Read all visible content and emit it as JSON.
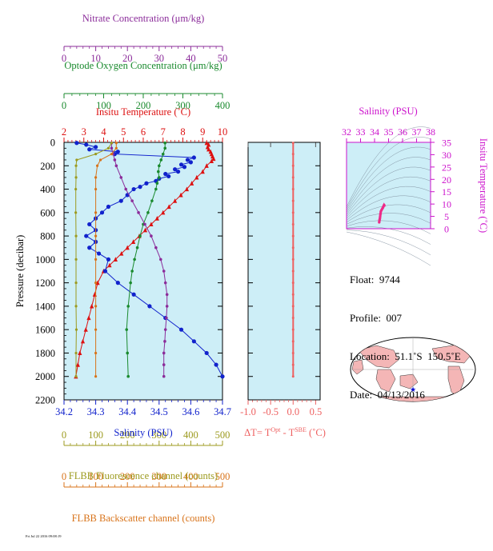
{
  "colors": {
    "nitrate": "#8b2c9a",
    "oxygen": "#1a8a2e",
    "temperature": "#dd1111",
    "salinity": "#1122cc",
    "fluorescence": "#9c9a1e",
    "backscatter": "#d8731a",
    "delta_t": "#ee6060",
    "ts_axis": "#cc11cc",
    "ts_curve": "#ee2a88",
    "panel_bg": "#cdeef7"
  },
  "axes": {
    "nitrate": {
      "label": "Nitrate Concentration (μm/kg)",
      "ticks": [
        "0",
        "10",
        "20",
        "30",
        "40",
        "50"
      ],
      "range": [
        0,
        50
      ]
    },
    "oxygen": {
      "label": "Optode Oxygen Concentration (μm/kg)",
      "ticks": [
        "0",
        "100",
        "200",
        "300",
        "400"
      ],
      "range": [
        0,
        400
      ]
    },
    "temperature": {
      "label": "Insitu Temperature (˚C)",
      "ticks": [
        "2",
        "3",
        "4",
        "5",
        "6",
        "7",
        "8",
        "9",
        "10"
      ],
      "range": [
        2,
        10
      ]
    },
    "pressure": {
      "label": "Pressure (decibar)",
      "ticks": [
        "0",
        "200",
        "400",
        "600",
        "800",
        "1000",
        "1200",
        "1400",
        "1600",
        "1800",
        "2000",
        "2200"
      ],
      "range": [
        0,
        2200
      ]
    },
    "salinity": {
      "label": "Salinity (PSU)",
      "ticks": [
        "34.2",
        "34.3",
        "34.4",
        "34.5",
        "34.6",
        "34.7"
      ],
      "range": [
        34.2,
        34.7
      ]
    },
    "fluorescence": {
      "label": "FLBB Fluorescence channel (counts)",
      "ticks": [
        "0",
        "100",
        "200",
        "300",
        "400",
        "500"
      ],
      "range": [
        0,
        500
      ]
    },
    "backscatter": {
      "label": "FLBB Backscatter channel (counts)",
      "ticks": [
        "0",
        "100",
        "200",
        "300",
        "400",
        "500"
      ],
      "range": [
        0,
        500
      ]
    },
    "delta_t": {
      "label": "ΔT= T",
      "label_sup1": "Opt",
      "label_mid": " - T",
      "label_sup2": "SBE",
      "label_end": " (˚C)",
      "ticks": [
        "-1.0",
        "-0.5",
        "0.0",
        "0.5"
      ],
      "range": [
        -1.0,
        0.6
      ]
    },
    "ts_salinity": {
      "label": "Salinity (PSU)",
      "ticks": [
        "32",
        "33",
        "34",
        "35",
        "36",
        "37",
        "38"
      ],
      "range": [
        32,
        38
      ]
    },
    "ts_temperature": {
      "label": "Insitu Temperature (˚C)",
      "ticks": [
        "0",
        "5",
        "10",
        "15",
        "20",
        "25",
        "30",
        "35"
      ],
      "range": [
        0,
        35
      ]
    }
  },
  "info": {
    "float": "Float:  9744",
    "profile": "Profile:  007",
    "location": "Location:  51.1˚S  150.5˚E",
    "date": "Date:  04/13/2016"
  },
  "footer_text": "Fri Jul 22 2016 09:08:19",
  "map": {
    "marker_lon": 150.5,
    "marker_lat": -51.1
  },
  "chart_data": {
    "type": "line",
    "y_axis": "pressure",
    "series": [
      {
        "key": "temperature",
        "pressure": [
          5,
          20,
          40,
          60,
          80,
          100,
          120,
          140,
          160,
          200,
          250,
          300,
          350,
          400,
          450,
          500,
          550,
          600,
          650,
          700,
          750,
          800,
          850,
          900,
          950,
          1000,
          1050,
          1100,
          1200,
          1300,
          1400,
          1500,
          1600,
          1700,
          1800,
          1900,
          2000
        ],
        "values": [
          9.2,
          9.3,
          9.25,
          9.3,
          9.4,
          9.45,
          9.5,
          9.55,
          9.45,
          9.2,
          9.0,
          8.7,
          8.45,
          8.2,
          7.9,
          7.6,
          7.3,
          7.0,
          6.7,
          6.4,
          6.1,
          5.8,
          5.5,
          5.2,
          4.9,
          4.6,
          4.3,
          4.0,
          3.7,
          3.55,
          3.4,
          3.25,
          3.1,
          2.95,
          2.8,
          2.7,
          2.6
        ]
      },
      {
        "key": "salinity",
        "pressure": [
          5,
          20,
          40,
          60,
          80,
          100,
          130,
          150,
          170,
          190,
          210,
          230,
          250,
          270,
          290,
          310,
          330,
          350,
          380,
          400,
          450,
          500,
          550,
          600,
          650,
          700,
          750,
          800,
          850,
          900,
          950,
          1000,
          1100,
          1200,
          1300,
          1400,
          1500,
          1600,
          1700,
          1800,
          1900,
          2000
        ],
        "values": [
          34.24,
          34.27,
          34.3,
          34.28,
          34.37,
          34.36,
          34.61,
          34.59,
          34.6,
          34.57,
          34.58,
          34.55,
          34.56,
          34.52,
          34.53,
          34.5,
          34.49,
          34.46,
          34.44,
          34.42,
          34.4,
          34.38,
          34.34,
          34.32,
          34.3,
          34.28,
          34.3,
          34.27,
          34.3,
          34.28,
          34.31,
          34.34,
          34.33,
          34.37,
          34.42,
          34.47,
          34.52,
          34.57,
          34.61,
          34.65,
          34.68,
          34.7
        ]
      },
      {
        "key": "oxygen",
        "pressure": [
          5,
          50,
          100,
          150,
          200,
          250,
          300,
          350,
          400,
          500,
          600,
          700,
          800,
          900,
          1000,
          1100,
          1200,
          1400,
          1600,
          1800,
          2000
        ],
        "values": [
          255,
          255,
          250,
          245,
          240,
          238,
          240,
          235,
          232,
          222,
          212,
          200,
          192,
          185,
          178,
          172,
          168,
          162,
          158,
          160,
          162
        ]
      },
      {
        "key": "nitrate",
        "pressure": [
          5,
          50,
          100,
          150,
          200,
          300,
          400,
          500,
          600,
          700,
          800,
          900,
          1000,
          1100,
          1200,
          1300,
          1400,
          1500,
          1600,
          1700,
          1800,
          1900,
          2000
        ],
        "values": [
          15,
          15,
          15.5,
          16,
          16.5,
          18,
          19.5,
          21.5,
          23.5,
          25.5,
          27.5,
          29,
          30.5,
          31.5,
          32,
          32.5,
          32.5,
          32.3,
          32,
          31.8,
          31.5,
          31.5,
          31.5
        ]
      },
      {
        "key": "fluorescence",
        "pressure": [
          5,
          50,
          100,
          150,
          200,
          300,
          400,
          600,
          800,
          1000,
          1200,
          1400,
          1600,
          1800,
          2000
        ],
        "values": [
          150,
          140,
          100,
          40,
          38,
          38,
          37,
          37,
          38,
          38,
          38,
          38,
          39,
          38,
          38
        ]
      },
      {
        "key": "backscatter",
        "pressure": [
          5,
          50,
          100,
          150,
          200,
          300,
          400,
          600,
          800,
          1000,
          1200,
          1400,
          1600,
          1800,
          2000
        ],
        "values": [
          165,
          165,
          150,
          115,
          105,
          100,
          100,
          100,
          100,
          100,
          100,
          100,
          100,
          100,
          100
        ]
      },
      {
        "key": "delta_t",
        "pressure": [
          5,
          100,
          200,
          300,
          400,
          500,
          600,
          700,
          800,
          900,
          1000,
          1100,
          1200,
          1300,
          1400,
          1500,
          1600,
          1700,
          1800,
          1900,
          2000
        ],
        "values": [
          0.0,
          0.0,
          0.0,
          0.0,
          0.0,
          0.0,
          0.0,
          0.0,
          0.0,
          0.0,
          0.0,
          0.0,
          0.0,
          0.0,
          0.0,
          0.0,
          0.0,
          0.0,
          0.0,
          0.0,
          0.0
        ]
      }
    ],
    "ts_diagram": {
      "xlabel": "Salinity (PSU)",
      "ylabel": "Insitu Temperature (˚C)",
      "xlim": [
        32,
        38
      ],
      "ylim": [
        0,
        35
      ],
      "salinity": [
        34.7,
        34.68,
        34.66,
        34.63,
        34.6,
        34.56,
        34.5,
        34.45,
        34.42,
        34.4,
        34.38,
        34.36,
        34.34,
        34.33
      ],
      "temperature": [
        9.4,
        9.6,
        9.3,
        9.0,
        8.6,
        8.2,
        7.6,
        7.0,
        6.0,
        5.0,
        4.2,
        3.6,
        3.0,
        2.6
      ]
    }
  }
}
